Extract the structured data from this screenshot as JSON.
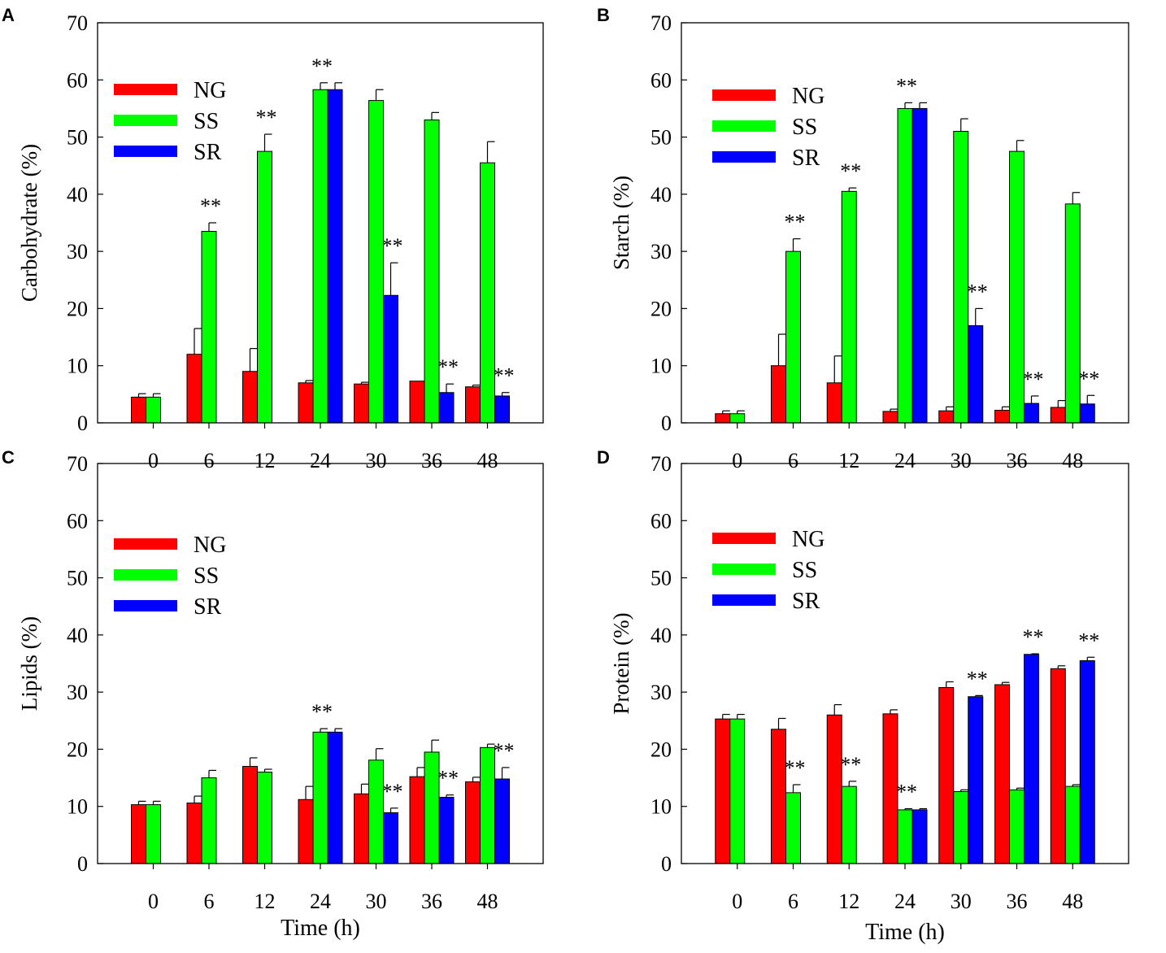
{
  "chart_data": [
    {
      "type": "bar",
      "panel_label": "A",
      "ylabel": "Carbohydrate (%)",
      "xlabel": "",
      "categories": [
        "0",
        "6",
        "12",
        "24",
        "30",
        "36",
        "48"
      ],
      "ylim": [
        0,
        70
      ],
      "yticks": [
        "0",
        "10",
        "20",
        "30",
        "40",
        "50",
        "60",
        "70"
      ],
      "legend_position": "top-left",
      "series": [
        {
          "name": "NG",
          "color": "#ff0000",
          "values": [
            4.5,
            12.0,
            9.0,
            7.0,
            6.8,
            7.3,
            6.3
          ],
          "errors": [
            0.6,
            4.5,
            4.0,
            0.4,
            0.3,
            0.0,
            0.3
          ]
        },
        {
          "name": "SS",
          "color": "#00ff00",
          "values": [
            4.5,
            33.5,
            47.5,
            58.3,
            56.4,
            53.0,
            45.5
          ],
          "errors": [
            0.6,
            1.5,
            3.0,
            1.2,
            1.9,
            1.3,
            3.7
          ]
        },
        {
          "name": "SR",
          "color": "#0000ff",
          "values": [
            null,
            null,
            null,
            58.3,
            22.3,
            5.3,
            4.7
          ],
          "errors": [
            null,
            null,
            null,
            1.2,
            5.7,
            1.5,
            0.6
          ]
        }
      ],
      "annotations": [
        {
          "category": "6",
          "series": "SS",
          "text": "**"
        },
        {
          "category": "12",
          "series": "SS",
          "text": "**"
        },
        {
          "category": "24",
          "series": "SS",
          "text": "**"
        },
        {
          "category": "30",
          "series": "SR",
          "text": "**"
        },
        {
          "category": "36",
          "series": "SR",
          "text": "**"
        },
        {
          "category": "48",
          "series": "SR",
          "text": "**"
        }
      ]
    },
    {
      "type": "bar",
      "panel_label": "B",
      "ylabel": "Starch (%)",
      "xlabel": "",
      "categories": [
        "0",
        "6",
        "12",
        "24",
        "30",
        "36",
        "48"
      ],
      "ylim": [
        0,
        70
      ],
      "yticks": [
        "0",
        "10",
        "20",
        "30",
        "40",
        "50",
        "60",
        "70"
      ],
      "legend_position": "top-left",
      "series": [
        {
          "name": "NG",
          "color": "#ff0000",
          "values": [
            1.6,
            10.0,
            7.0,
            2.0,
            2.1,
            2.2,
            2.7
          ],
          "errors": [
            0.5,
            5.5,
            4.7,
            0.4,
            0.7,
            0.6,
            1.2
          ]
        },
        {
          "name": "SS",
          "color": "#00ff00",
          "values": [
            1.6,
            30.0,
            40.5,
            55.0,
            51.0,
            47.5,
            38.3
          ],
          "errors": [
            0.5,
            2.2,
            0.6,
            1.0,
            2.2,
            1.9,
            2.0
          ]
        },
        {
          "name": "SR",
          "color": "#0000ff",
          "values": [
            null,
            null,
            null,
            55.0,
            17.0,
            3.4,
            3.3
          ],
          "errors": [
            null,
            null,
            null,
            1.0,
            3.0,
            1.3,
            1.5
          ]
        }
      ],
      "annotations": [
        {
          "category": "6",
          "series": "SS",
          "text": "**"
        },
        {
          "category": "12",
          "series": "SS",
          "text": "**"
        },
        {
          "category": "24",
          "series": "SS",
          "text": "**"
        },
        {
          "category": "30",
          "series": "SR",
          "text": "**"
        },
        {
          "category": "36",
          "series": "SR",
          "text": "**"
        },
        {
          "category": "48",
          "series": "SR",
          "text": "**"
        }
      ]
    },
    {
      "type": "bar",
      "panel_label": "C",
      "ylabel": "Lipids (%)",
      "xlabel": "Time (h)",
      "categories": [
        "0",
        "6",
        "12",
        "24",
        "30",
        "36",
        "48"
      ],
      "ylim": [
        0,
        70
      ],
      "yticks": [
        "0",
        "10",
        "20",
        "30",
        "40",
        "50",
        "60",
        "70"
      ],
      "legend_position": "top-left",
      "series": [
        {
          "name": "NG",
          "color": "#ff0000",
          "values": [
            10.3,
            10.6,
            17.0,
            11.2,
            12.2,
            15.2,
            14.3
          ],
          "errors": [
            0.6,
            1.2,
            1.5,
            2.3,
            1.7,
            1.6,
            0.8
          ]
        },
        {
          "name": "SS",
          "color": "#00ff00",
          "values": [
            10.3,
            15.0,
            16.0,
            23.0,
            18.1,
            19.5,
            20.3
          ],
          "errors": [
            0.6,
            1.3,
            0.5,
            0.6,
            2.0,
            2.1,
            0.6
          ]
        },
        {
          "name": "SR",
          "color": "#0000ff",
          "values": [
            null,
            null,
            null,
            23.0,
            8.9,
            11.6,
            14.8
          ],
          "errors": [
            null,
            null,
            null,
            0.6,
            0.8,
            0.4,
            2.0
          ]
        }
      ],
      "annotations": [
        {
          "category": "24",
          "series": "SS",
          "text": "**"
        },
        {
          "category": "30",
          "series": "SR",
          "text": "**"
        },
        {
          "category": "36",
          "series": "SR",
          "text": "**"
        },
        {
          "category": "48",
          "series": "SR",
          "text": "**"
        }
      ]
    },
    {
      "type": "bar",
      "panel_label": "D",
      "ylabel": "Protein (%)",
      "xlabel": "Time (h)",
      "categories": [
        "0",
        "6",
        "12",
        "24",
        "30",
        "36",
        "48"
      ],
      "ylim": [
        0,
        70
      ],
      "yticks": [
        "0",
        "10",
        "20",
        "30",
        "40",
        "50",
        "60",
        "70"
      ],
      "legend_position": "top-left",
      "series": [
        {
          "name": "NG",
          "color": "#ff0000",
          "values": [
            25.3,
            23.5,
            26.0,
            26.2,
            30.8,
            31.3,
            34.1
          ],
          "errors": [
            0.8,
            1.9,
            1.8,
            0.7,
            1.0,
            0.4,
            0.5
          ]
        },
        {
          "name": "SS",
          "color": "#00ff00",
          "values": [
            25.3,
            12.4,
            13.5,
            9.4,
            12.6,
            12.9,
            13.5
          ],
          "errors": [
            0.8,
            1.4,
            0.9,
            0.2,
            0.3,
            0.3,
            0.3
          ]
        },
        {
          "name": "SR",
          "color": "#0000ff",
          "values": [
            null,
            null,
            null,
            9.4,
            29.2,
            36.6,
            35.5
          ],
          "errors": [
            null,
            null,
            null,
            0.2,
            0.2,
            0.1,
            0.6
          ]
        }
      ],
      "annotations": [
        {
          "category": "6",
          "series": "SS",
          "text": "**"
        },
        {
          "category": "12",
          "series": "SS",
          "text": "**"
        },
        {
          "category": "24",
          "series": "SS",
          "text": "**"
        },
        {
          "category": "30",
          "series": "SR",
          "text": "**"
        },
        {
          "category": "36",
          "series": "SR",
          "text": "**"
        },
        {
          "category": "48",
          "series": "SR",
          "text": "**"
        }
      ]
    }
  ]
}
